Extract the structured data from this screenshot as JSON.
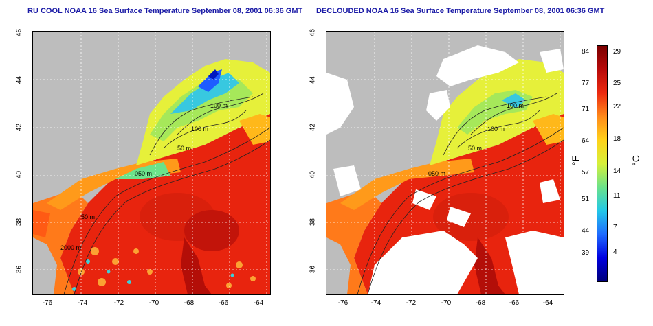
{
  "left_title": "RU COOL NOAA 16 Sea Surface Temperature September 08, 2001 06:36 GMT",
  "right_title": "DECLOUDED NOAA 16 Sea Surface Temperature September 08, 2001 06:36 GMT",
  "lat_ticks": [
    "46",
    "44",
    "42",
    "40",
    "38",
    "36"
  ],
  "lon_ticks": [
    "-76",
    "-74",
    "-72",
    "-70",
    "-68",
    "-66",
    "-64"
  ],
  "contour_labels": [
    "100 m",
    "100 m",
    "50 m",
    "050 m",
    "50 m",
    "2000 m"
  ],
  "colorbar": {
    "fahrenheit_label": "°F",
    "celsius_label": "°C",
    "fahrenheit_ticks": [
      "84",
      "77",
      "71",
      "64",
      "57",
      "51",
      "44",
      "39"
    ],
    "celsius_ticks": [
      "29",
      "25",
      "22",
      "18",
      "14",
      "11",
      "7",
      "4"
    ],
    "colors": [
      "#00007a",
      "#0000e0",
      "#1f6bff",
      "#22c8e8",
      "#6be28a",
      "#d6f03a",
      "#ffd21a",
      "#ff8a1a",
      "#ec2a10",
      "#b80a0a",
      "#7a0000"
    ]
  }
}
